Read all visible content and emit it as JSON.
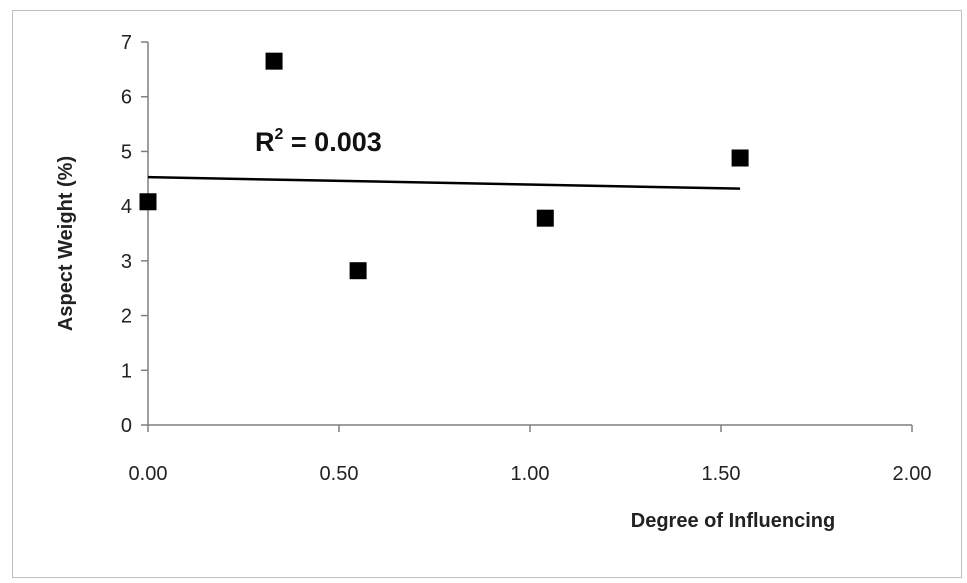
{
  "chart_data": {
    "type": "scatter",
    "title": "",
    "xlabel": "Degree of Influencing",
    "ylabel": "Aspect Weight (%)",
    "xlim": [
      0,
      2
    ],
    "ylim": [
      0,
      7
    ],
    "x_ticks": [
      "0.00",
      "0.50",
      "1.00",
      "1.50",
      "2.00"
    ],
    "y_ticks": [
      "0",
      "1",
      "2",
      "3",
      "4",
      "5",
      "6",
      "7"
    ],
    "grid": false,
    "legend": "none",
    "marker_color": "#000000",
    "series": [
      {
        "x": [
          0.0,
          0.33,
          0.55,
          1.04,
          1.55
        ],
        "y": [
          4.08,
          6.65,
          2.82,
          3.78,
          4.88
        ],
        "marker": "square"
      }
    ],
    "trendline": {
      "type": "linear",
      "x": [
        0,
        1.55
      ],
      "y": [
        4.53,
        4.32
      ]
    },
    "annotation": {
      "text_before": "R",
      "superscript": "2",
      "text_after": " = 0.003",
      "x": 1.0,
      "y": 5.1
    }
  }
}
